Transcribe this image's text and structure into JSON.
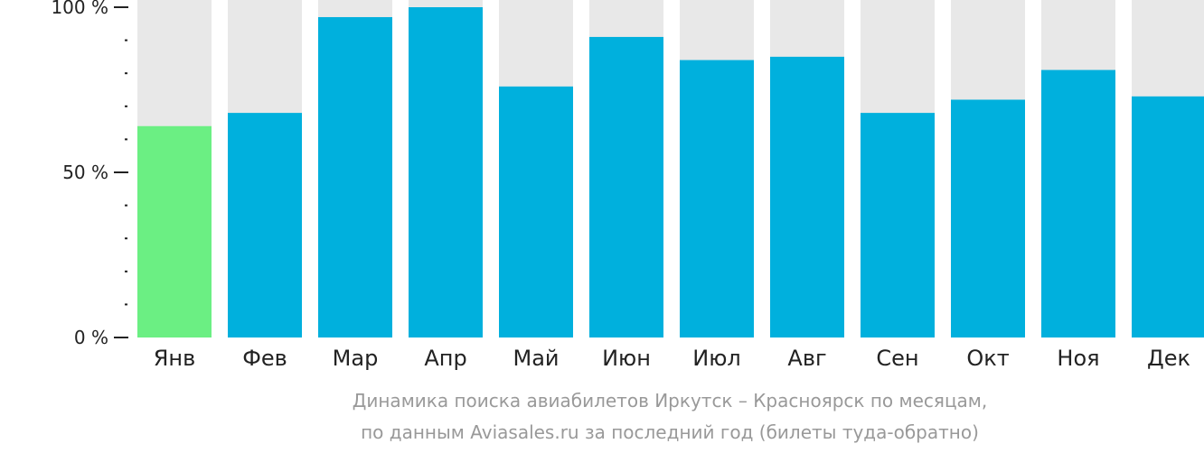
{
  "chart_data": {
    "type": "bar",
    "categories": [
      "Янв",
      "Фев",
      "Мар",
      "Апр",
      "Май",
      "Июн",
      "Июл",
      "Авг",
      "Сен",
      "Окт",
      "Ноя",
      "Дек"
    ],
    "values": [
      64,
      68,
      97,
      100,
      76,
      91,
      84,
      85,
      68,
      72,
      81,
      73
    ],
    "highlight_index": 0,
    "ylim": [
      0,
      100
    ],
    "y_ticks": [
      {
        "value": 0,
        "label": "0 %"
      },
      {
        "value": 50,
        "label": "50 %"
      },
      {
        "value": 100,
        "label": "100 %"
      }
    ],
    "minor_tick_step": 10,
    "xlabel": "",
    "ylabel": "",
    "colors": {
      "bar": "#00b0dd",
      "highlight": "#6bef83",
      "background_bar": "#e8e8e8",
      "axis": "#222222",
      "text": "#222222",
      "caption": "#999999"
    }
  },
  "caption": {
    "line1": "Динамика поиска авиабилетов Иркутск – Красноярск по месяцам,",
    "line2": "по данным Aviasales.ru за последний год (билеты туда-обратно)"
  }
}
